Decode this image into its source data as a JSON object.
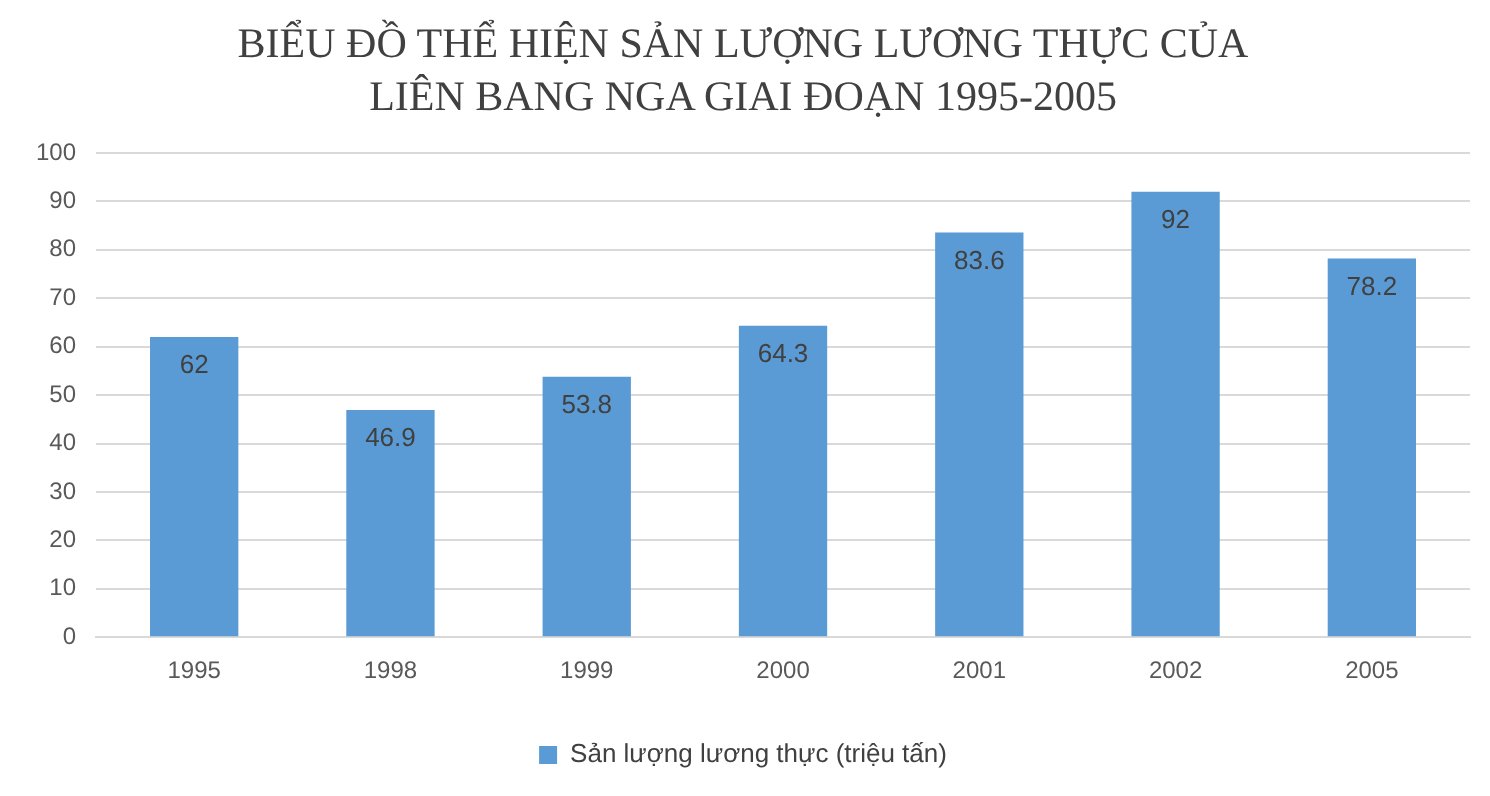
{
  "chart_data": {
    "type": "bar",
    "title": "BIỂU ĐỒ THỂ HIỆN SẢN LƯỢNG LƯƠNG THỰC CỦA\nLIÊN BANG NGA GIAI ĐOẠN 1995-2005",
    "categories": [
      "1995",
      "1998",
      "1999",
      "2000",
      "2001",
      "2002",
      "2005"
    ],
    "series": [
      {
        "name": "Sản lượng lương thực (triệu tấn)",
        "color": "#5b9bd5",
        "values": [
          62,
          46.9,
          53.8,
          64.3,
          83.6,
          92,
          78.2
        ]
      }
    ],
    "ylim": [
      0,
      100
    ],
    "yticks": [
      0,
      10,
      20,
      30,
      40,
      50,
      60,
      70,
      80,
      90,
      100
    ],
    "grid": "y",
    "legend": "bottom",
    "data_labels": true
  }
}
